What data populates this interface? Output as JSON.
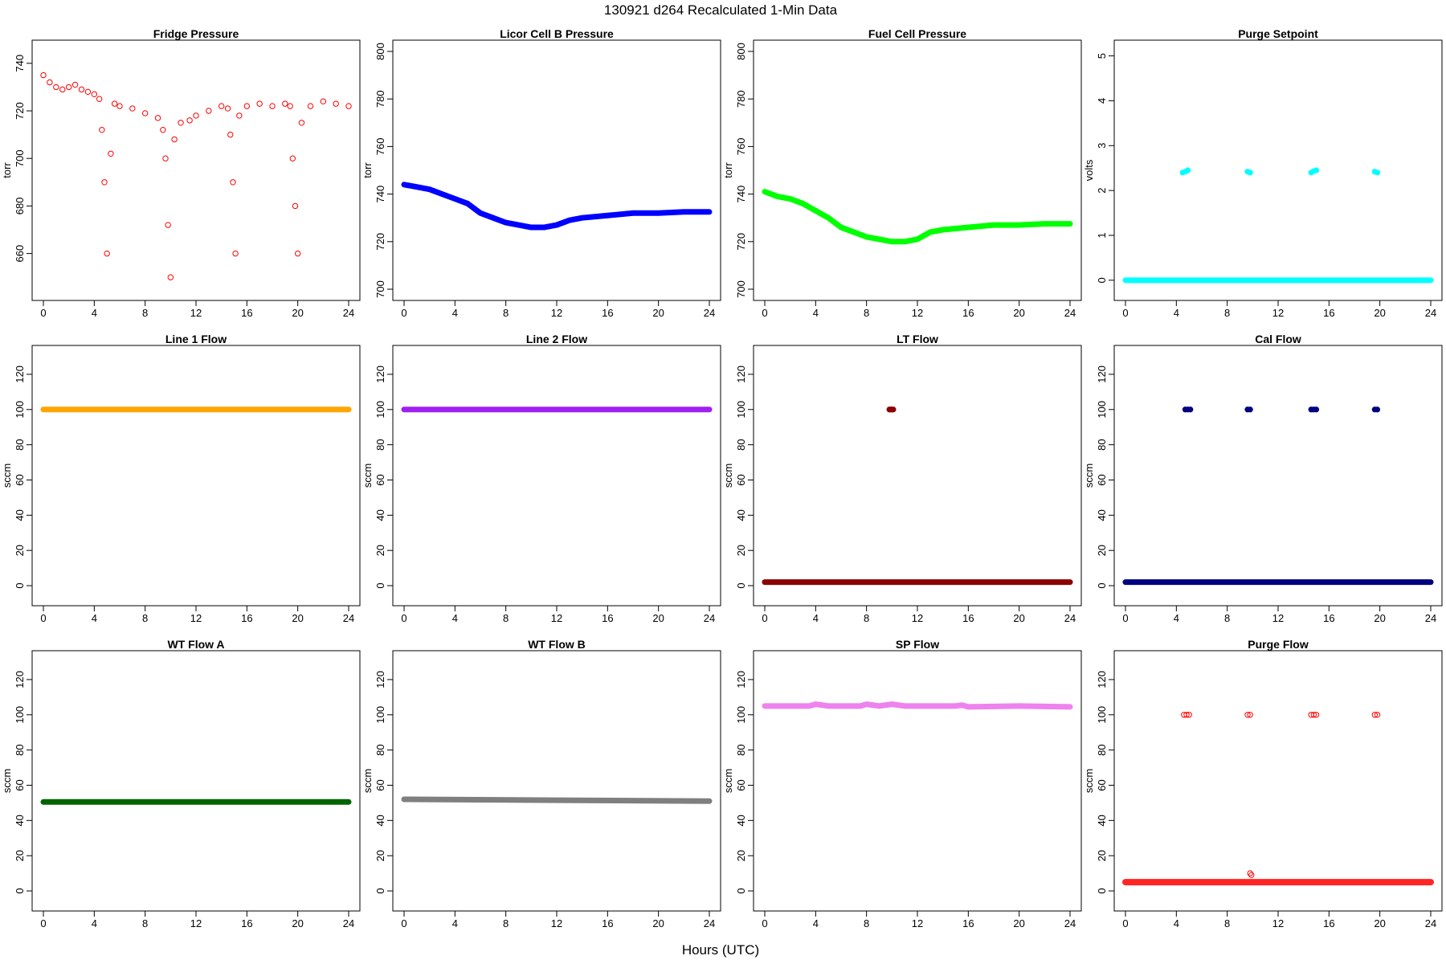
{
  "figure": {
    "title": "130921   d264   Recalculated 1-Min Data",
    "xlabel": "Hours (UTC)"
  },
  "chart_data": [
    {
      "type": "scatter",
      "title": "Fridge Pressure",
      "ylabel": "torr",
      "color": "#ff0000",
      "marker": "open",
      "xlim": [
        0,
        24
      ],
      "ylim": [
        645,
        745
      ],
      "xticks": [
        0,
        4,
        8,
        12,
        16,
        20,
        24
      ],
      "yticks": [
        660,
        680,
        700,
        720,
        740
      ],
      "series": [
        {
          "values": [
            [
              0,
              735
            ],
            [
              0.5,
              732
            ],
            [
              1,
              730
            ],
            [
              1.5,
              729
            ],
            [
              2,
              730
            ],
            [
              2.5,
              731
            ],
            [
              3,
              729
            ],
            [
              3.5,
              728
            ],
            [
              4,
              727
            ],
            [
              4.4,
              725
            ],
            [
              4.6,
              712
            ],
            [
              4.8,
              690
            ],
            [
              5,
              660
            ],
            [
              5.3,
              702
            ],
            [
              5.6,
              723
            ],
            [
              6,
              722
            ],
            [
              7,
              721
            ],
            [
              8,
              719
            ],
            [
              9,
              717
            ],
            [
              9.4,
              712
            ],
            [
              9.6,
              700
            ],
            [
              9.8,
              672
            ],
            [
              10,
              650
            ],
            [
              10.3,
              708
            ],
            [
              10.8,
              715
            ],
            [
              11.5,
              716
            ],
            [
              12,
              718
            ],
            [
              13,
              720
            ],
            [
              14,
              722
            ],
            [
              14.5,
              721
            ],
            [
              14.7,
              710
            ],
            [
              14.9,
              690
            ],
            [
              15.1,
              660
            ],
            [
              15.4,
              718
            ],
            [
              16,
              722
            ],
            [
              17,
              723
            ],
            [
              18,
              722
            ],
            [
              19,
              723
            ],
            [
              19.4,
              722
            ],
            [
              19.6,
              700
            ],
            [
              19.8,
              680
            ],
            [
              20,
              660
            ],
            [
              20.3,
              715
            ],
            [
              21,
              722
            ],
            [
              22,
              724
            ],
            [
              23,
              723
            ],
            [
              24,
              722
            ]
          ]
        }
      ]
    },
    {
      "type": "line",
      "title": "Licor Cell B Pressure",
      "ylabel": "torr",
      "color": "#0000ff",
      "xlim": [
        0,
        24
      ],
      "ylim": [
        700,
        800
      ],
      "xticks": [
        0,
        4,
        8,
        12,
        16,
        20,
        24
      ],
      "yticks": [
        700,
        720,
        740,
        760,
        780,
        800
      ],
      "series": [
        {
          "values": [
            [
              0,
              744
            ],
            [
              1,
              743
            ],
            [
              2,
              742
            ],
            [
              3,
              740
            ],
            [
              4,
              738
            ],
            [
              5,
              736
            ],
            [
              6,
              732
            ],
            [
              7,
              730
            ],
            [
              8,
              728
            ],
            [
              9,
              727
            ],
            [
              10,
              726
            ],
            [
              11,
              726
            ],
            [
              12,
              727
            ],
            [
              13,
              729
            ],
            [
              14,
              730
            ],
            [
              16,
              731
            ],
            [
              18,
              732
            ],
            [
              20,
              732
            ],
            [
              22,
              732.5
            ],
            [
              24,
              732.5
            ]
          ]
        }
      ]
    },
    {
      "type": "line",
      "title": "Fuel Cell Pressure",
      "ylabel": "torr",
      "color": "#00ff00",
      "xlim": [
        0,
        24
      ],
      "ylim": [
        700,
        800
      ],
      "xticks": [
        0,
        4,
        8,
        12,
        16,
        20,
        24
      ],
      "yticks": [
        700,
        720,
        740,
        760,
        780,
        800
      ],
      "series": [
        {
          "values": [
            [
              0,
              741
            ],
            [
              1,
              739
            ],
            [
              2,
              738
            ],
            [
              3,
              736
            ],
            [
              4,
              733
            ],
            [
              5,
              730
            ],
            [
              6,
              726
            ],
            [
              7,
              724
            ],
            [
              8,
              722
            ],
            [
              9,
              721
            ],
            [
              10,
              720
            ],
            [
              11,
              720
            ],
            [
              12,
              721
            ],
            [
              13,
              724
            ],
            [
              14,
              725
            ],
            [
              16,
              726
            ],
            [
              18,
              727
            ],
            [
              20,
              727
            ],
            [
              22,
              727.5
            ],
            [
              24,
              727.5
            ]
          ]
        }
      ]
    },
    {
      "type": "scatter",
      "title": "Purge Setpoint",
      "ylabel": "volts",
      "color": "#00ffff",
      "xlim": [
        0,
        24
      ],
      "ylim": [
        -0.2,
        5.1
      ],
      "xticks": [
        0,
        4,
        8,
        12,
        16,
        20,
        24
      ],
      "yticks": [
        0,
        1,
        2,
        3,
        4,
        5
      ],
      "baseline": 0,
      "base_start": 0,
      "series": [
        {
          "values": [
            [
              4.5,
              2.4
            ],
            [
              4.7,
              2.42
            ],
            [
              4.9,
              2.45
            ],
            [
              9.6,
              2.42
            ],
            [
              9.8,
              2.4
            ],
            [
              14.6,
              2.4
            ],
            [
              14.8,
              2.43
            ],
            [
              15,
              2.45
            ],
            [
              19.6,
              2.42
            ],
            [
              19.8,
              2.4
            ]
          ]
        }
      ]
    },
    {
      "type": "line",
      "title": "Line 1 Flow",
      "ylabel": "sccm",
      "color": "#ffa500",
      "xlim": [
        0,
        24
      ],
      "ylim": [
        -5,
        130
      ],
      "xticks": [
        0,
        4,
        8,
        12,
        16,
        20,
        24
      ],
      "yticks": [
        0,
        20,
        40,
        60,
        80,
        100,
        120
      ],
      "series": [
        {
          "values": [
            [
              0,
              100
            ],
            [
              24,
              100
            ]
          ]
        }
      ]
    },
    {
      "type": "line",
      "title": "Line 2 Flow",
      "ylabel": "sccm",
      "color": "#a020f0",
      "xlim": [
        0,
        24
      ],
      "ylim": [
        -5,
        130
      ],
      "xticks": [
        0,
        4,
        8,
        12,
        16,
        20,
        24
      ],
      "yticks": [
        0,
        20,
        40,
        60,
        80,
        100,
        120
      ],
      "series": [
        {
          "values": [
            [
              0,
              100
            ],
            [
              24,
              100
            ]
          ]
        }
      ]
    },
    {
      "type": "scatter",
      "title": "LT Flow",
      "ylabel": "sccm",
      "color": "#8b0000",
      "xlim": [
        0,
        24
      ],
      "ylim": [
        -5,
        130
      ],
      "xticks": [
        0,
        4,
        8,
        12,
        16,
        20,
        24
      ],
      "yticks": [
        0,
        20,
        40,
        60,
        80,
        100,
        120
      ],
      "baseline": 2,
      "base_start": 0,
      "series": [
        {
          "values": [
            [
              9.8,
              100
            ],
            [
              9.9,
              100
            ],
            [
              10,
              100
            ],
            [
              10.1,
              100
            ]
          ]
        }
      ]
    },
    {
      "type": "scatter",
      "title": "Cal Flow",
      "ylabel": "sccm",
      "color": "#000080",
      "xlim": [
        0,
        24
      ],
      "ylim": [
        -5,
        130
      ],
      "xticks": [
        0,
        4,
        8,
        12,
        16,
        20,
        24
      ],
      "yticks": [
        0,
        20,
        40,
        60,
        80,
        100,
        120
      ],
      "baseline": 2,
      "base_start": 0,
      "series": [
        {
          "values": [
            [
              4.7,
              100
            ],
            [
              4.9,
              100
            ],
            [
              5.1,
              100
            ],
            [
              9.6,
              100
            ],
            [
              9.8,
              100
            ],
            [
              14.6,
              100
            ],
            [
              14.8,
              100
            ],
            [
              15,
              100
            ],
            [
              19.6,
              100
            ],
            [
              19.8,
              100
            ]
          ]
        }
      ]
    },
    {
      "type": "line",
      "title": "WT Flow A",
      "ylabel": "sccm",
      "color": "#006400",
      "xlim": [
        0,
        24
      ],
      "ylim": [
        -5,
        130
      ],
      "xticks": [
        0,
        4,
        8,
        12,
        16,
        20,
        24
      ],
      "yticks": [
        0,
        20,
        40,
        60,
        80,
        100,
        120
      ],
      "series": [
        {
          "values": [
            [
              0,
              50.5
            ],
            [
              24,
              50.5
            ]
          ]
        }
      ]
    },
    {
      "type": "line",
      "title": "WT Flow B",
      "ylabel": "sccm",
      "color": "#7f7f7f",
      "xlim": [
        0,
        24
      ],
      "ylim": [
        -5,
        130
      ],
      "xticks": [
        0,
        4,
        8,
        12,
        16,
        20,
        24
      ],
      "yticks": [
        0,
        20,
        40,
        60,
        80,
        100,
        120
      ],
      "series": [
        {
          "values": [
            [
              0,
              52
            ],
            [
              12,
              51.5
            ],
            [
              24,
              51
            ]
          ]
        }
      ]
    },
    {
      "type": "line",
      "title": "SP Flow",
      "ylabel": "sccm",
      "color": "#ee82ee",
      "xlim": [
        0,
        24
      ],
      "ylim": [
        -5,
        130
      ],
      "xticks": [
        0,
        4,
        8,
        12,
        16,
        20,
        24
      ],
      "yticks": [
        0,
        20,
        40,
        60,
        80,
        100,
        120
      ],
      "series": [
        {
          "values": [
            [
              0,
              105
            ],
            [
              3.5,
              105
            ],
            [
              4,
              106
            ],
            [
              5,
              105
            ],
            [
              7.5,
              105
            ],
            [
              8,
              106
            ],
            [
              9,
              105
            ],
            [
              10,
              106
            ],
            [
              11,
              105
            ],
            [
              15,
              105
            ],
            [
              15.5,
              105.5
            ],
            [
              16,
              104.5
            ],
            [
              20,
              105
            ],
            [
              24,
              104.5
            ]
          ]
        }
      ]
    },
    {
      "type": "scatter",
      "title": "Purge Flow",
      "ylabel": "sccm",
      "color": "#ff0000",
      "marker": "open",
      "xlim": [
        0,
        24
      ],
      "ylim": [
        -5,
        130
      ],
      "xticks": [
        0,
        4,
        8,
        12,
        16,
        20,
        24
      ],
      "yticks": [
        0,
        20,
        40,
        60,
        80,
        100,
        120
      ],
      "baseline": 5,
      "base_start": 0,
      "series": [
        {
          "values": [
            [
              4.6,
              100
            ],
            [
              4.8,
              100
            ],
            [
              5,
              100
            ],
            [
              9.6,
              100
            ],
            [
              9.8,
              100
            ],
            [
              14.6,
              100
            ],
            [
              14.8,
              100
            ],
            [
              15,
              100
            ],
            [
              19.6,
              100
            ],
            [
              19.8,
              100
            ],
            [
              9.8,
              10
            ],
            [
              9.9,
              9
            ]
          ]
        }
      ]
    }
  ]
}
